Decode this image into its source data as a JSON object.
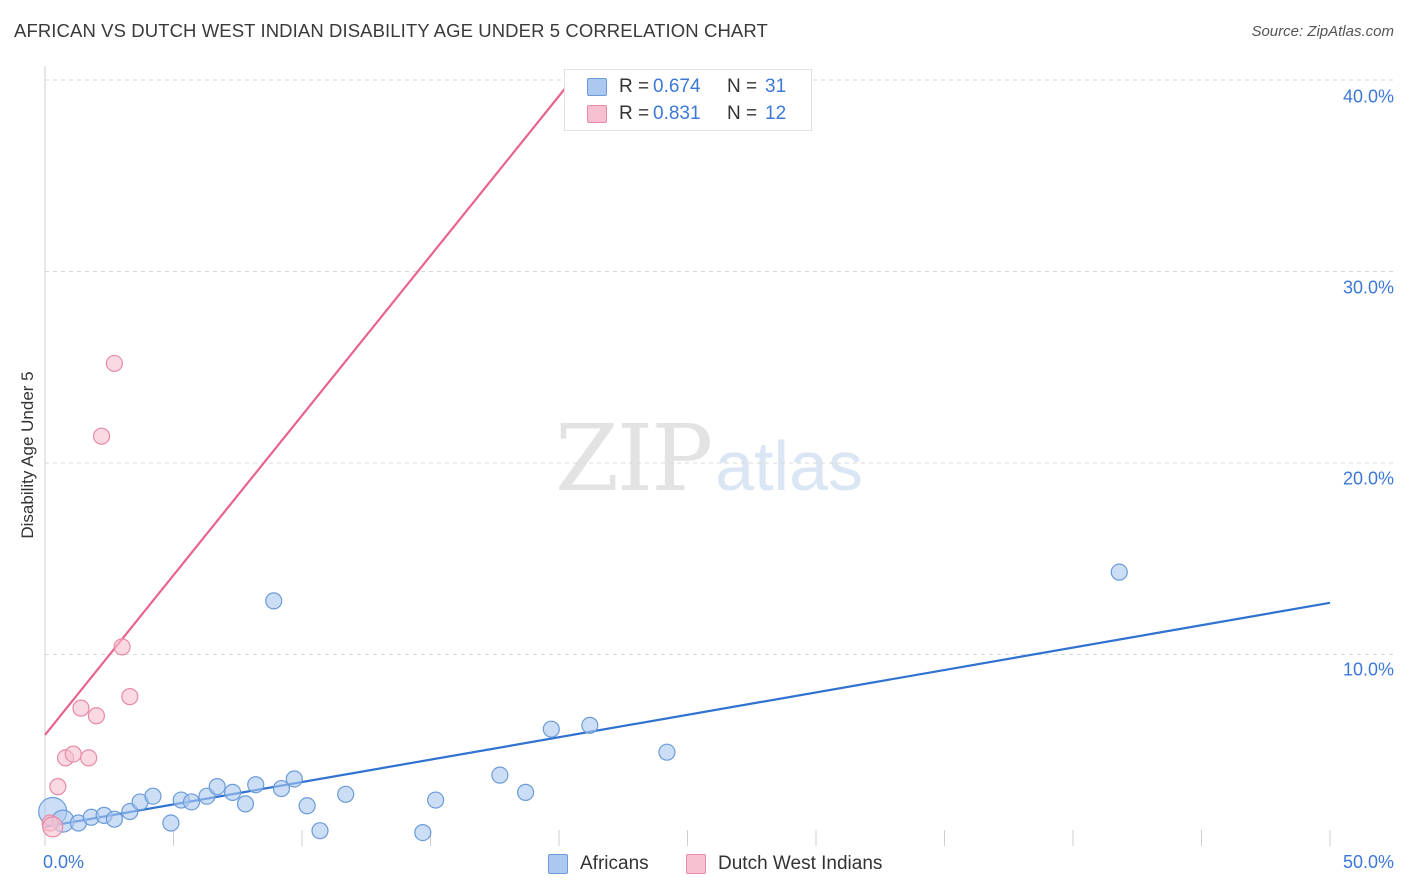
{
  "title": "AFRICAN VS DUTCH WEST INDIAN DISABILITY AGE UNDER 5 CORRELATION CHART",
  "source": "Source: ZipAtlas.com",
  "watermark": {
    "zip": "ZIP",
    "atlas": "atlas"
  },
  "colors": {
    "blue_fill": "#aac8f0",
    "blue_stroke": "#6b9bd8",
    "blue_line": "#2f72d0",
    "pink_fill": "#f7c0d0",
    "pink_stroke": "#e88aa6",
    "pink_line": "#e8648c",
    "tick_text": "#3c78d8",
    "grid": "#d8d8d8"
  },
  "legend": {
    "rows": [
      {
        "r_label": "R =",
        "r_value": "0.674",
        "n_label": "N =",
        "n_value": "31"
      },
      {
        "r_label": "R =",
        "r_value": "0.831",
        "n_label": "N =",
        "n_value": "12"
      }
    ]
  },
  "bottom_legend": {
    "series0": "Africans",
    "series1": "Dutch West Indians"
  },
  "chart_data": {
    "type": "scatter",
    "title": "AFRICAN VS DUTCH WEST INDIAN DISABILITY AGE UNDER 5 CORRELATION CHART",
    "xlabel": "",
    "ylabel": "Disability Age Under 5",
    "xlim": [
      0,
      50
    ],
    "ylim": [
      0,
      40
    ],
    "x_tick_labels": [
      "0.0%",
      "50.0%"
    ],
    "y_ticks": [
      10,
      20,
      30,
      40
    ],
    "y_tick_labels": [
      "10.0%",
      "20.0%",
      "30.0%",
      "40.0%"
    ],
    "grid": true,
    "legend_position": "top-center",
    "series": [
      {
        "name": "Africans",
        "r": 0.674,
        "n": 31,
        "points": [
          [
            0.3,
            1.8
          ],
          [
            0.7,
            1.3
          ],
          [
            1.3,
            1.2
          ],
          [
            1.8,
            1.5
          ],
          [
            2.3,
            1.6
          ],
          [
            2.7,
            1.4
          ],
          [
            3.3,
            1.8
          ],
          [
            3.7,
            2.3
          ],
          [
            4.2,
            2.6
          ],
          [
            4.9,
            1.2
          ],
          [
            5.3,
            2.4
          ],
          [
            5.7,
            2.3
          ],
          [
            6.3,
            2.6
          ],
          [
            6.7,
            3.1
          ],
          [
            7.3,
            2.8
          ],
          [
            7.8,
            2.2
          ],
          [
            8.2,
            3.2
          ],
          [
            9.2,
            3.0
          ],
          [
            9.7,
            3.5
          ],
          [
            10.2,
            2.1
          ],
          [
            10.7,
            0.8
          ],
          [
            11.7,
            2.7
          ],
          [
            14.7,
            0.7
          ],
          [
            15.2,
            2.4
          ],
          [
            17.7,
            3.7
          ],
          [
            18.7,
            2.8
          ],
          [
            19.7,
            6.1
          ],
          [
            21.2,
            6.3
          ],
          [
            24.2,
            4.9
          ],
          [
            8.9,
            12.8
          ],
          [
            41.8,
            14.3
          ]
        ],
        "trend": {
          "x": [
            0,
            50
          ],
          "y": [
            1.0,
            12.7
          ]
        }
      },
      {
        "name": "Dutch West Indians",
        "r": 0.831,
        "n": 12,
        "points": [
          [
            0.2,
            1.2
          ],
          [
            0.5,
            3.1
          ],
          [
            0.8,
            4.6
          ],
          [
            1.1,
            4.8
          ],
          [
            1.4,
            7.2
          ],
          [
            1.7,
            4.6
          ],
          [
            2.0,
            6.8
          ],
          [
            2.2,
            21.4
          ],
          [
            2.7,
            25.2
          ],
          [
            3.0,
            10.4
          ],
          [
            3.3,
            7.8
          ],
          [
            0.3,
            1.0
          ]
        ],
        "trend": {
          "x": [
            0,
            20.5
          ],
          "y": [
            5.8,
            40.0
          ]
        }
      }
    ]
  }
}
